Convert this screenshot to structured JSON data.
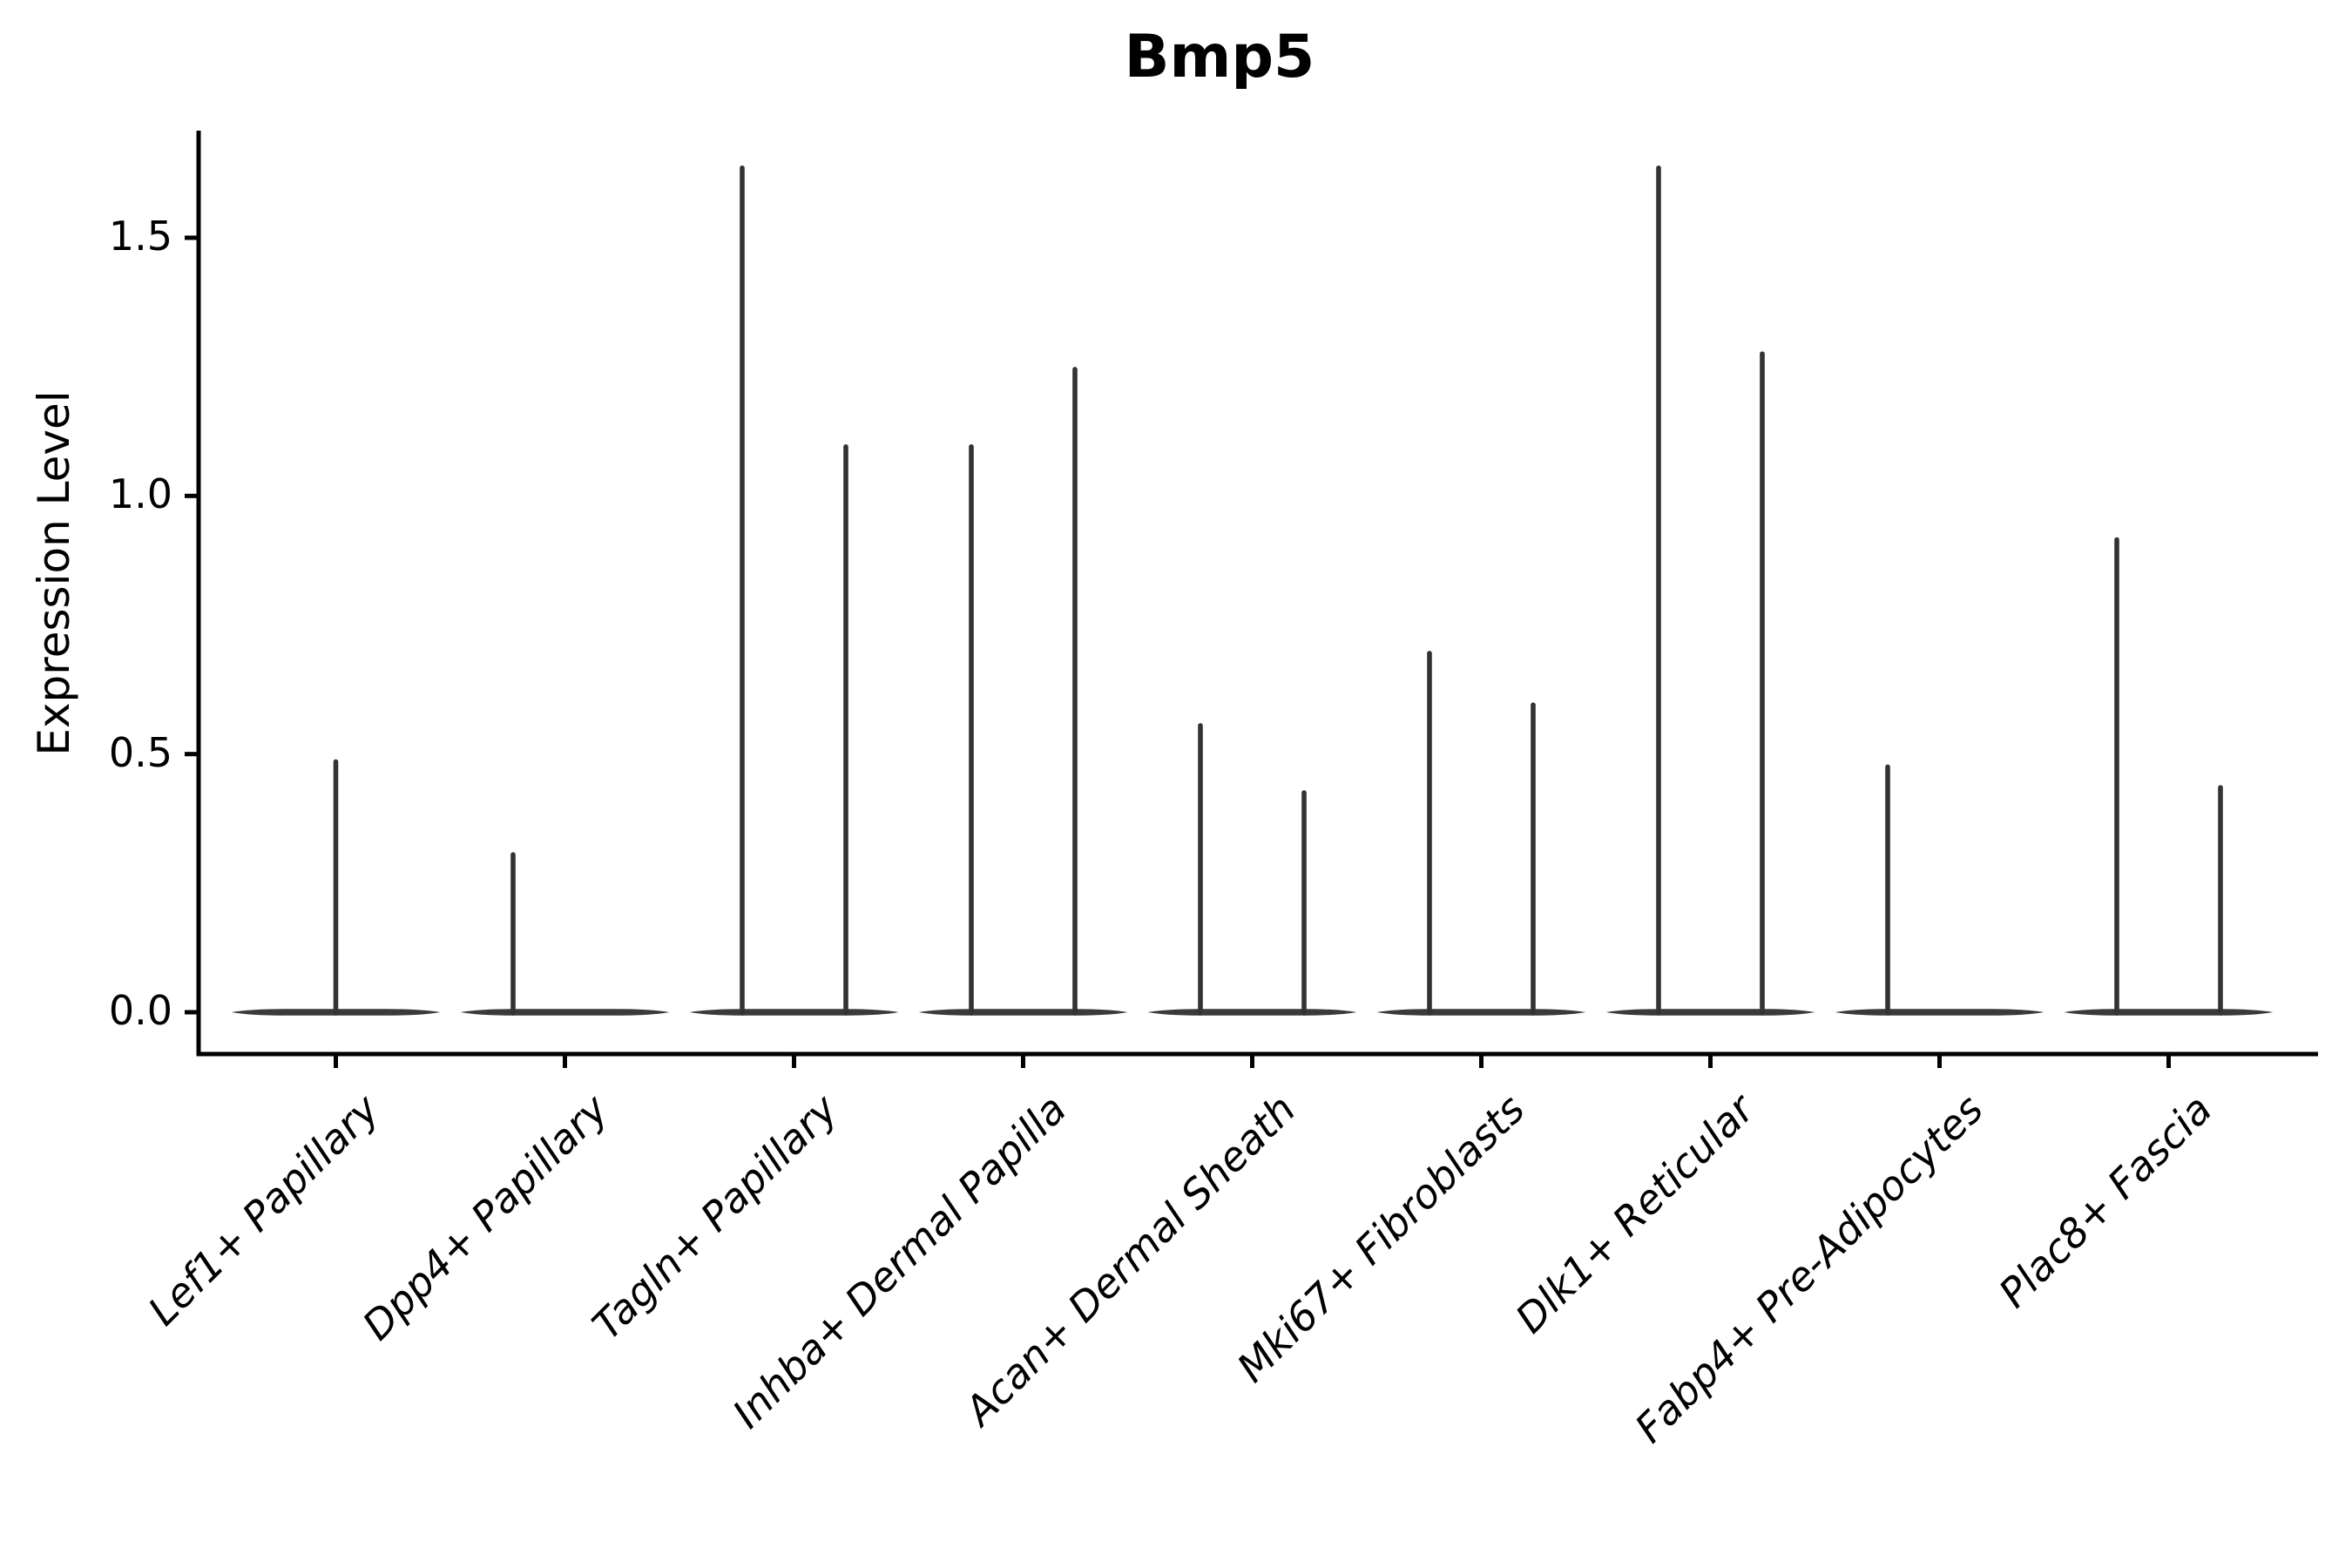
{
  "title": "Bmp5",
  "colors": {
    "background": "#ffffff",
    "violin_fill": "#3a3a3a",
    "spike": "#333333",
    "axis": "#000000",
    "text": "#000000"
  },
  "y_axis": {
    "label": "Expression Level",
    "tick_labels": [
      "0.0",
      "0.5",
      "1.0",
      "1.5"
    ]
  },
  "chart_data": {
    "type": "violin",
    "title": "Bmp5",
    "xlabel": "",
    "ylabel": "Expression Level",
    "ylim": [
      0,
      1.71
    ],
    "yticks": [
      0.0,
      0.5,
      1.0,
      1.5
    ],
    "grid": false,
    "legend": "none",
    "description": "Single-cell expression violin plot; each category shows a wide flat base at 0 (most cells not expressing) with thin vertical density tails reaching the maximum expression level.",
    "categories": [
      "Lef1+ Papillary",
      "Dpp4+ Papillary",
      "Tagln+ Papillary",
      "Inhba+ Dermal Papilla",
      "Acan+ Dermal Sheath",
      "Mki67+ Fibroblasts",
      "Dlk1+ Reticular",
      "Fabp4+ Pre-Adipocytes",
      "Plac8+ Fascia"
    ],
    "groups": [
      {
        "label": "Lef1+ Papillary",
        "violins": [
          {
            "side": "center",
            "max": 0.49
          }
        ]
      },
      {
        "label": "Dpp4+ Papillary",
        "violins": [
          {
            "side": "left",
            "max": 0.31
          }
        ]
      },
      {
        "label": "Tagln+ Papillary",
        "violins": [
          {
            "side": "left",
            "max": 1.64
          },
          {
            "side": "right",
            "max": 1.1
          }
        ]
      },
      {
        "label": "Inhba+ Dermal Papilla",
        "violins": [
          {
            "side": "left",
            "max": 1.1
          },
          {
            "side": "right",
            "max": 1.25
          }
        ]
      },
      {
        "label": "Acan+ Dermal Sheath",
        "violins": [
          {
            "side": "left",
            "max": 0.56
          },
          {
            "side": "right",
            "max": 0.43
          }
        ]
      },
      {
        "label": "Mki67+ Fibroblasts",
        "violins": [
          {
            "side": "left",
            "max": 0.7
          },
          {
            "side": "right",
            "max": 0.6
          }
        ]
      },
      {
        "label": "Dlk1+ Reticular",
        "violins": [
          {
            "side": "left",
            "max": 1.64
          },
          {
            "side": "right",
            "max": 1.28
          }
        ]
      },
      {
        "label": "Fabp4+ Pre-Adipocytes",
        "violins": [
          {
            "side": "left",
            "max": 0.48
          }
        ]
      },
      {
        "label": "Plac8+ Fascia",
        "violins": [
          {
            "side": "left",
            "max": 0.92
          },
          {
            "side": "right",
            "max": 0.44
          }
        ]
      }
    ]
  }
}
